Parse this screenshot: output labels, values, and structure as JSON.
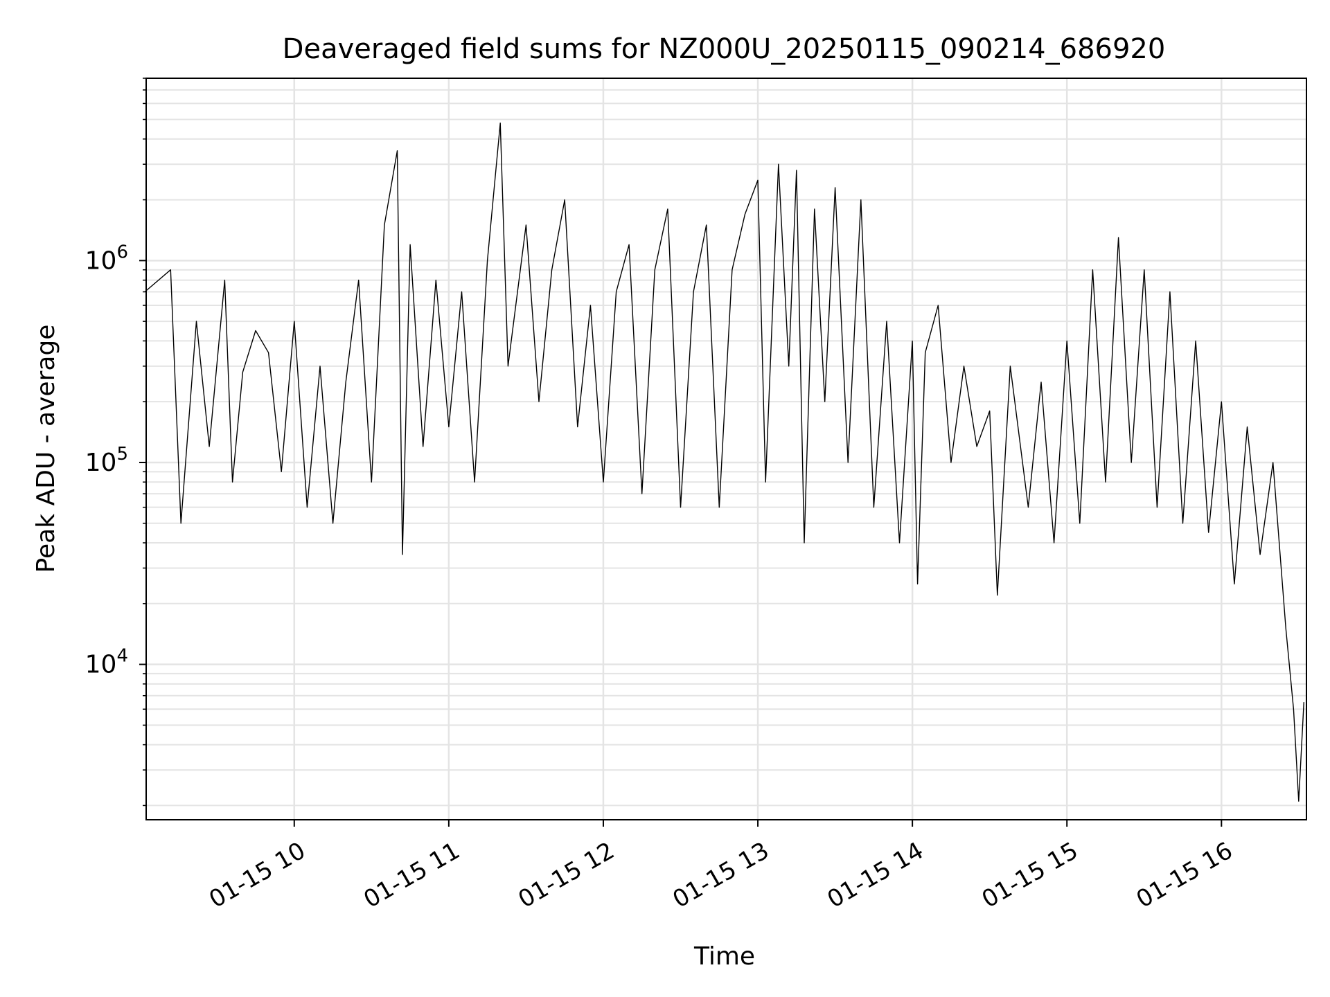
{
  "chart_data": {
    "type": "line",
    "title": "Deaveraged field sums for NZ000U_20250115_090214_686920",
    "xlabel": "Time",
    "ylabel": "Peak ADU - average",
    "yscale": "log",
    "ylim": [
      1700,
      8000000
    ],
    "xlim": [
      "2025-01-15 09:02:30",
      "2025-01-15 16:33:00"
    ],
    "grid": {
      "major": true,
      "minor_y": true
    },
    "line_color": "#000000",
    "x_ticks": [
      {
        "value": "2025-01-15 10:00",
        "label": "01-15 10"
      },
      {
        "value": "2025-01-15 11:00",
        "label": "01-15 11"
      },
      {
        "value": "2025-01-15 12:00",
        "label": "01-15 12"
      },
      {
        "value": "2025-01-15 13:00",
        "label": "01-15 13"
      },
      {
        "value": "2025-01-15 14:00",
        "label": "01-15 14"
      },
      {
        "value": "2025-01-15 15:00",
        "label": "01-15 15"
      },
      {
        "value": "2025-01-15 16:00",
        "label": "01-15 16"
      }
    ],
    "y_ticks": [
      {
        "value": 10000,
        "base": "10",
        "exp": "4"
      },
      {
        "value": 100000,
        "base": "10",
        "exp": "5"
      },
      {
        "value": 1000000,
        "base": "10",
        "exp": "6"
      }
    ],
    "series": [
      {
        "sampling": "representative envelope trace",
        "points": [
          [
            "2025-01-15 09:02",
            700000
          ],
          [
            "2025-01-15 09:12",
            900000
          ],
          [
            "2025-01-15 09:16",
            50000
          ],
          [
            "2025-01-15 09:22",
            500000
          ],
          [
            "2025-01-15 09:27",
            120000
          ],
          [
            "2025-01-15 09:33",
            800000
          ],
          [
            "2025-01-15 09:36",
            80000
          ],
          [
            "2025-01-15 09:40",
            280000
          ],
          [
            "2025-01-15 09:45",
            450000
          ],
          [
            "2025-01-15 09:50",
            350000
          ],
          [
            "2025-01-15 09:55",
            90000
          ],
          [
            "2025-01-15 10:00",
            500000
          ],
          [
            "2025-01-15 10:05",
            60000
          ],
          [
            "2025-01-15 10:10",
            300000
          ],
          [
            "2025-01-15 10:15",
            50000
          ],
          [
            "2025-01-15 10:20",
            250000
          ],
          [
            "2025-01-15 10:25",
            800000
          ],
          [
            "2025-01-15 10:30",
            80000
          ],
          [
            "2025-01-15 10:35",
            1500000
          ],
          [
            "2025-01-15 10:40",
            3500000
          ],
          [
            "2025-01-15 10:42",
            35000
          ],
          [
            "2025-01-15 10:45",
            1200000
          ],
          [
            "2025-01-15 10:50",
            120000
          ],
          [
            "2025-01-15 10:55",
            800000
          ],
          [
            "2025-01-15 11:00",
            150000
          ],
          [
            "2025-01-15 11:05",
            700000
          ],
          [
            "2025-01-15 11:10",
            80000
          ],
          [
            "2025-01-15 11:15",
            1000000
          ],
          [
            "2025-01-15 11:20",
            4800000
          ],
          [
            "2025-01-15 11:23",
            300000
          ],
          [
            "2025-01-15 11:30",
            1500000
          ],
          [
            "2025-01-15 11:35",
            200000
          ],
          [
            "2025-01-15 11:40",
            900000
          ],
          [
            "2025-01-15 11:45",
            2000000
          ],
          [
            "2025-01-15 11:50",
            150000
          ],
          [
            "2025-01-15 11:55",
            600000
          ],
          [
            "2025-01-15 12:00",
            80000
          ],
          [
            "2025-01-15 12:05",
            700000
          ],
          [
            "2025-01-15 12:10",
            1200000
          ],
          [
            "2025-01-15 12:15",
            70000
          ],
          [
            "2025-01-15 12:20",
            900000
          ],
          [
            "2025-01-15 12:25",
            1800000
          ],
          [
            "2025-01-15 12:30",
            60000
          ],
          [
            "2025-01-15 12:35",
            700000
          ],
          [
            "2025-01-15 12:40",
            1500000
          ],
          [
            "2025-01-15 12:45",
            60000
          ],
          [
            "2025-01-15 12:50",
            900000
          ],
          [
            "2025-01-15 12:55",
            1700000
          ],
          [
            "2025-01-15 13:00",
            2500000
          ],
          [
            "2025-01-15 13:03",
            80000
          ],
          [
            "2025-01-15 13:08",
            3000000
          ],
          [
            "2025-01-15 13:12",
            300000
          ],
          [
            "2025-01-15 13:15",
            2800000
          ],
          [
            "2025-01-15 13:18",
            40000
          ],
          [
            "2025-01-15 13:22",
            1800000
          ],
          [
            "2025-01-15 13:26",
            200000
          ],
          [
            "2025-01-15 13:30",
            2300000
          ],
          [
            "2025-01-15 13:35",
            100000
          ],
          [
            "2025-01-15 13:40",
            2000000
          ],
          [
            "2025-01-15 13:45",
            60000
          ],
          [
            "2025-01-15 13:50",
            500000
          ],
          [
            "2025-01-15 13:55",
            40000
          ],
          [
            "2025-01-15 14:00",
            400000
          ],
          [
            "2025-01-15 14:02",
            25000
          ],
          [
            "2025-01-15 14:05",
            350000
          ],
          [
            "2025-01-15 14:10",
            600000
          ],
          [
            "2025-01-15 14:15",
            100000
          ],
          [
            "2025-01-15 14:20",
            300000
          ],
          [
            "2025-01-15 14:25",
            120000
          ],
          [
            "2025-01-15 14:30",
            180000
          ],
          [
            "2025-01-15 14:33",
            22000
          ],
          [
            "2025-01-15 14:38",
            300000
          ],
          [
            "2025-01-15 14:45",
            60000
          ],
          [
            "2025-01-15 14:50",
            250000
          ],
          [
            "2025-01-15 14:55",
            40000
          ],
          [
            "2025-01-15 15:00",
            400000
          ],
          [
            "2025-01-15 15:05",
            50000
          ],
          [
            "2025-01-15 15:10",
            900000
          ],
          [
            "2025-01-15 15:15",
            80000
          ],
          [
            "2025-01-15 15:20",
            1300000
          ],
          [
            "2025-01-15 15:25",
            100000
          ],
          [
            "2025-01-15 15:30",
            900000
          ],
          [
            "2025-01-15 15:35",
            60000
          ],
          [
            "2025-01-15 15:40",
            700000
          ],
          [
            "2025-01-15 15:45",
            50000
          ],
          [
            "2025-01-15 15:50",
            400000
          ],
          [
            "2025-01-15 15:55",
            45000
          ],
          [
            "2025-01-15 16:00",
            200000
          ],
          [
            "2025-01-15 16:05",
            25000
          ],
          [
            "2025-01-15 16:10",
            150000
          ],
          [
            "2025-01-15 16:15",
            35000
          ],
          [
            "2025-01-15 16:20",
            100000
          ],
          [
            "2025-01-15 16:25",
            15000
          ],
          [
            "2025-01-15 16:28",
            6000
          ],
          [
            "2025-01-15 16:30",
            2100
          ],
          [
            "2025-01-15 16:32",
            6500
          ]
        ]
      }
    ]
  }
}
